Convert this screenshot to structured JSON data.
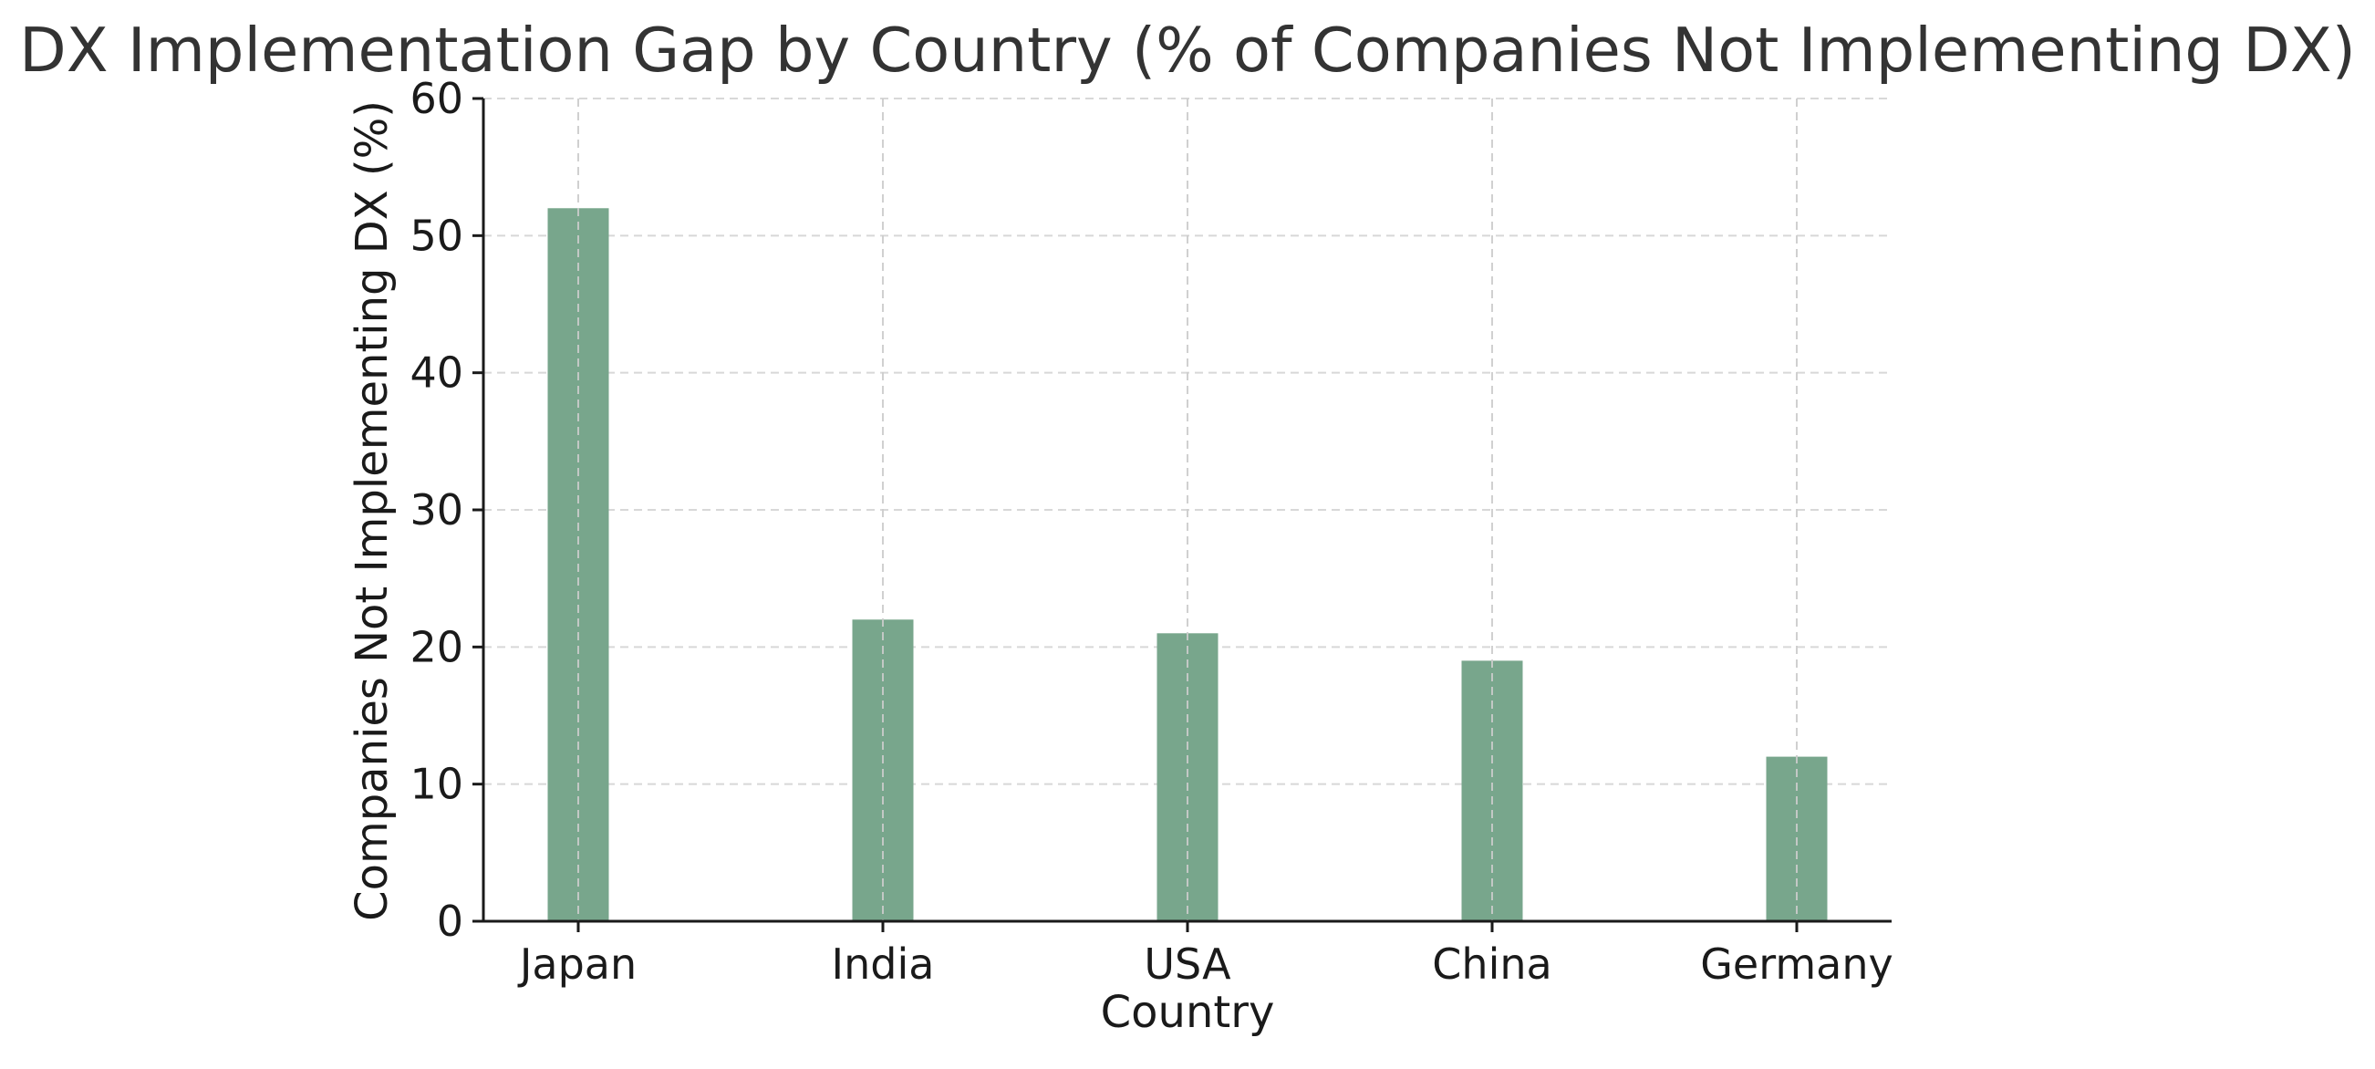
{
  "chart_data": {
    "type": "bar",
    "title": "DX Implementation Gap by Country (% of Companies Not Implementing DX)",
    "xlabel": "Country",
    "ylabel": "Companies Not Implementing DX (%)",
    "categories": [
      "Japan",
      "India",
      "USA",
      "China",
      "Germany"
    ],
    "values": [
      52,
      22,
      21,
      19,
      12
    ],
    "ylim": [
      0,
      60
    ],
    "yticks": [
      "0",
      "10",
      "20",
      "30",
      "40",
      "50",
      "60"
    ],
    "grid": true,
    "legend": "none",
    "colors": {
      "bar": "#78a68c",
      "axis": "#1a1a1a",
      "grid": "#cccccc",
      "title": "#333333"
    }
  }
}
